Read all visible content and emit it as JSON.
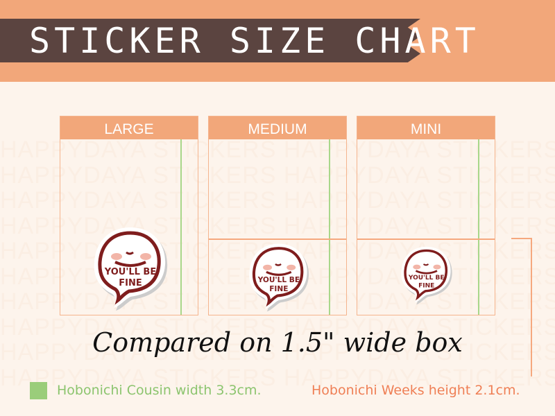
{
  "header": {
    "title": "STICKER SIZE CHART"
  },
  "watermark": "HAPPYDAYA STICKERS",
  "sizes": [
    {
      "label": "LARGE"
    },
    {
      "label": "MEDIUM"
    },
    {
      "label": "MINI"
    }
  ],
  "sticker": {
    "text_line1": "YOU'LL BE",
    "text_line2": "FINE"
  },
  "caption": "Compared on 1.5\" wide box",
  "legend": {
    "green_label": "Hobonichi Cousin width 3.3cm.",
    "orange_label": "Hobonichi Weeks height 2.1cm.",
    "green_color": "#9acd7a",
    "orange_color": "#ef7f55"
  },
  "colors": {
    "band": "#f2a77a",
    "banner": "#5b4440",
    "background": "#fdf4ec",
    "sticker_ink": "#7f1d1d"
  }
}
